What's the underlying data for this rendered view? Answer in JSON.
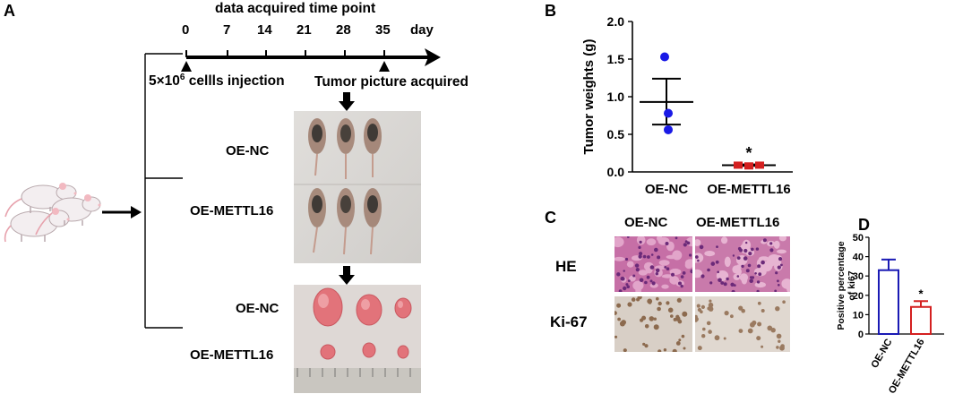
{
  "panelA": {
    "label": "A",
    "timeline_title": "data acquired time point",
    "days": [
      "0",
      "7",
      "14",
      "21",
      "28",
      "35"
    ],
    "day_unit": "day",
    "injection_label_prefix": "5×10",
    "injection_label_exp": "6",
    "injection_label_suffix": " cellls injection",
    "tumor_label": "Tumor picture acquired",
    "mice_groups": [
      "OE-NC",
      "OE-METTL16"
    ],
    "tumor_groups": [
      "OE-NC",
      "OE-METTL16"
    ]
  },
  "panelB": {
    "label": "B",
    "chart_data": {
      "type": "scatter",
      "ylabel": "Tumor weights (g)",
      "ylim": [
        0.0,
        2.0
      ],
      "yticks": [
        "0.0",
        "0.5",
        "1.0",
        "1.5",
        "2.0"
      ],
      "categories": [
        "OE-NC",
        "OE-METTL16"
      ],
      "series": [
        {
          "points": [
            1.53,
            0.78,
            0.56
          ],
          "mean": 0.93,
          "sem_upper": 1.24,
          "sem_lower": 0.63,
          "color": "#1a1ae6"
        },
        {
          "points": [
            0.09,
            0.08,
            0.09
          ],
          "mean": 0.09,
          "sem_upper": 0.1,
          "sem_lower": 0.08,
          "color": "#d42020"
        }
      ],
      "annotation": "*"
    }
  },
  "panelC": {
    "label": "C",
    "columns": [
      "OE-NC",
      "OE-METTL16"
    ],
    "rows": [
      "HE",
      "Ki-67"
    ]
  },
  "panelD": {
    "label": "D",
    "chart_data": {
      "type": "bar",
      "ylabel_line1": "Positive percentage",
      "ylabel_line2": "of ki67",
      "ylim": [
        0,
        50
      ],
      "yticks": [
        "0",
        "10",
        "20",
        "30",
        "40",
        "50"
      ],
      "categories": [
        "OE-NC",
        "OE-METTL16"
      ],
      "values": [
        33,
        14
      ],
      "err": [
        5.5,
        3
      ],
      "colors": [
        "#1a1ab4",
        "#d42020"
      ],
      "annotation": "*"
    }
  }
}
